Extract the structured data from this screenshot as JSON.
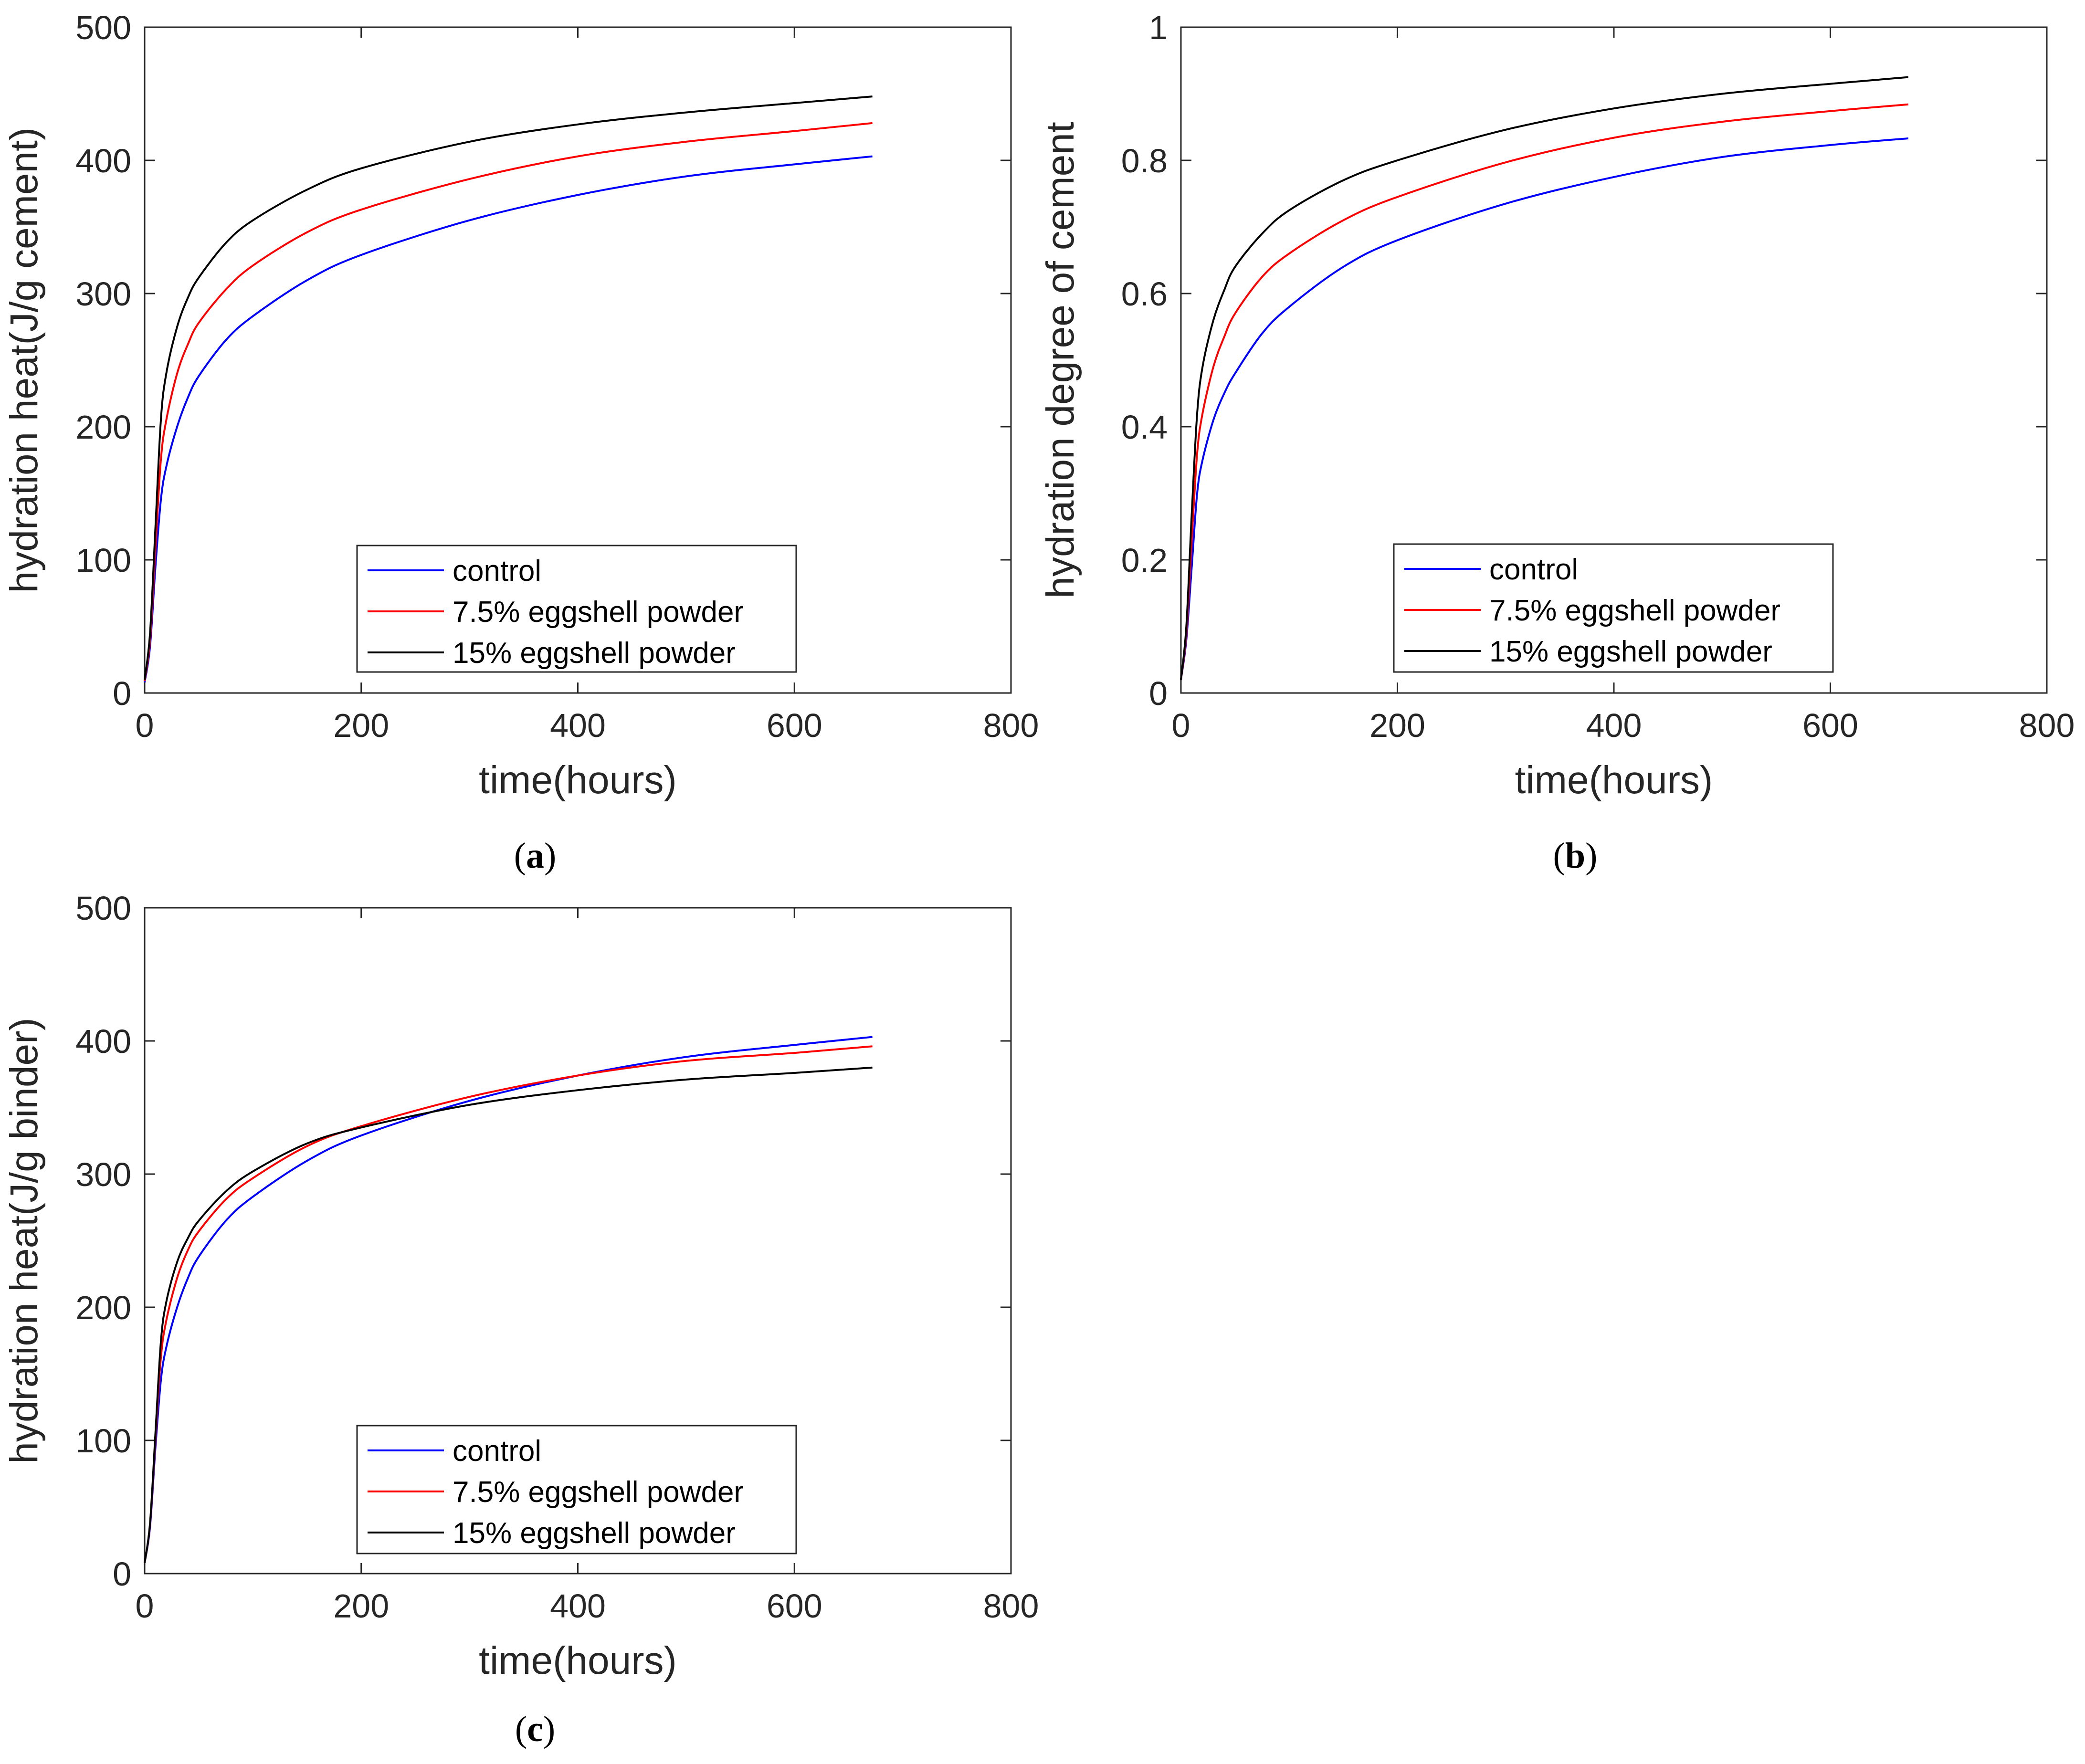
{
  "figure": {
    "series_colors": {
      "control": "#0000ff",
      "7.5% eggshell powder": "#ff0000",
      "15% eggshell powder": "#000000"
    }
  },
  "chart_data": [
    {
      "id": "a",
      "type": "line",
      "caption": {
        "open": "(",
        "letter": "a",
        "close": ")"
      },
      "xlabel": "time(hours)",
      "ylabel": "hydration heat(J/g cement)",
      "xlim": [
        0,
        800
      ],
      "ylim": [
        0,
        500
      ],
      "xticks": [
        0,
        200,
        400,
        600,
        800
      ],
      "xtick_labels": [
        "0",
        "200",
        "400",
        "600",
        "800"
      ],
      "yticks": [
        0,
        100,
        200,
        300,
        400,
        500
      ],
      "ytick_labels": [
        "0",
        "100",
        "200",
        "300",
        "400",
        "500"
      ],
      "legend": {
        "location": "bottom-center",
        "entries": [
          "control",
          "7.5% eggshell powder",
          "15% eggshell powder"
        ]
      },
      "x": [
        0,
        5,
        10,
        15,
        20,
        30,
        40,
        50,
        75,
        100,
        150,
        200,
        300,
        400,
        500,
        600,
        672
      ],
      "series": [
        {
          "name": "control",
          "color": "#0000ff",
          "values": [
            8,
            35,
            95,
            145,
            170,
            200,
            222,
            238,
            265,
            283,
            310,
            329,
            355,
            374,
            388,
            397,
            403
          ]
        },
        {
          "name": "7.5% eggshell powder",
          "color": "#ff0000",
          "values": [
            9,
            40,
            110,
            175,
            205,
            240,
            262,
            278,
            303,
            321,
            346,
            363,
            386,
            403,
            414,
            422,
            428
          ]
        },
        {
          "name": "15% eggshell powder",
          "color": "#000000",
          "values": [
            10,
            45,
            125,
            205,
            240,
            275,
            297,
            312,
            338,
            355,
            378,
            394,
            414,
            427,
            436,
            443,
            448
          ]
        }
      ]
    },
    {
      "id": "b",
      "type": "line",
      "caption": {
        "open": "(",
        "letter": "b",
        "close": ")"
      },
      "xlabel": "time(hours)",
      "ylabel": "hydration degree of cement",
      "xlim": [
        0,
        800
      ],
      "ylim": [
        0,
        1
      ],
      "xticks": [
        0,
        200,
        400,
        600,
        800
      ],
      "xtick_labels": [
        "0",
        "200",
        "400",
        "600",
        "800"
      ],
      "yticks": [
        0,
        0.2,
        0.4,
        0.6,
        0.8,
        1
      ],
      "ytick_labels": [
        "0",
        "0.2",
        "0.4",
        "0.6",
        "0.8",
        "1"
      ],
      "legend": {
        "location": "bottom-center",
        "entries": [
          "control",
          "7.5% eggshell powder",
          "15% eggshell powder"
        ]
      },
      "x": [
        0,
        5,
        10,
        15,
        20,
        30,
        40,
        50,
        75,
        100,
        150,
        200,
        300,
        400,
        500,
        600,
        672
      ],
      "series": [
        {
          "name": "control",
          "color": "#0000ff",
          "values": [
            0.02,
            0.08,
            0.19,
            0.3,
            0.35,
            0.41,
            0.45,
            0.48,
            0.54,
            0.58,
            0.64,
            0.68,
            0.735,
            0.775,
            0.805,
            0.823,
            0.833
          ]
        },
        {
          "name": "7.5% eggshell powder",
          "color": "#ff0000",
          "values": [
            0.02,
            0.09,
            0.23,
            0.36,
            0.42,
            0.49,
            0.535,
            0.57,
            0.625,
            0.66,
            0.71,
            0.745,
            0.797,
            0.834,
            0.858,
            0.874,
            0.884
          ]
        },
        {
          "name": "15% eggshell powder",
          "color": "#000000",
          "values": [
            0.02,
            0.1,
            0.27,
            0.42,
            0.49,
            0.56,
            0.605,
            0.64,
            0.69,
            0.725,
            0.77,
            0.8,
            0.846,
            0.878,
            0.9,
            0.915,
            0.925
          ]
        }
      ]
    },
    {
      "id": "c",
      "type": "line",
      "caption": {
        "open": "(",
        "letter": "c",
        "close": ")"
      },
      "xlabel": "time(hours)",
      "ylabel": "hydration heat(J/g binder)",
      "xlim": [
        0,
        800
      ],
      "ylim": [
        0,
        500
      ],
      "xticks": [
        0,
        200,
        400,
        600,
        800
      ],
      "xtick_labels": [
        "0",
        "200",
        "400",
        "600",
        "800"
      ],
      "yticks": [
        0,
        100,
        200,
        300,
        400,
        500
      ],
      "ytick_labels": [
        "0",
        "100",
        "200",
        "300",
        "400",
        "500"
      ],
      "legend": {
        "location": "bottom-center",
        "entries": [
          "control",
          "7.5% eggshell powder",
          "15% eggshell powder"
        ]
      },
      "x": [
        0,
        5,
        10,
        15,
        20,
        30,
        40,
        50,
        75,
        100,
        150,
        200,
        300,
        400,
        500,
        600,
        672
      ],
      "series": [
        {
          "name": "control",
          "color": "#0000ff",
          "values": [
            8,
            35,
            95,
            145,
            170,
            200,
            222,
            238,
            265,
            283,
            310,
            329,
            355,
            374,
            388,
            397,
            403
          ]
        },
        {
          "name": "7.5% eggshell powder",
          "color": "#ff0000",
          "values": [
            8,
            37,
            102,
            162,
            190,
            222,
            243,
            257,
            281,
            297,
            321,
            336,
            358,
            374,
            385,
            391,
            396
          ]
        },
        {
          "name": "15% eggshell powder",
          "color": "#000000",
          "values": [
            8,
            38,
            106,
            174,
            204,
            234,
            252,
            265,
            287,
            302,
            323,
            335,
            352,
            363,
            371,
            376,
            380
          ]
        }
      ]
    }
  ]
}
